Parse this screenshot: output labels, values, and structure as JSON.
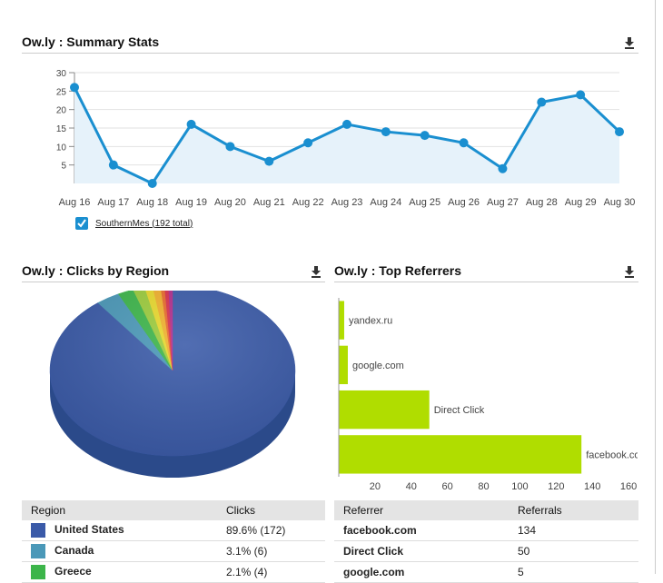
{
  "summary": {
    "title": "Ow.ly : Summary Stats",
    "legend_label": "SouthernMes (192 total)",
    "series_color": "#1a8fd0",
    "download_icon": "download-icon"
  },
  "region": {
    "title": "Ow.ly : Clicks by Region",
    "col_region": "Region",
    "col_clicks": "Clicks",
    "rows": [
      {
        "name": "United States",
        "clicks": "89.6% (172)",
        "color": "#3a5aa8"
      },
      {
        "name": "Canada",
        "clicks": "3.1% (6)",
        "color": "#4a98b8"
      },
      {
        "name": "Greece",
        "clicks": "2.1% (4)",
        "color": "#3cb54a"
      }
    ]
  },
  "referrers": {
    "title": "Ow.ly : Top Referrers",
    "col_referrer": "Referrer",
    "col_referrals": "Referrals",
    "rows": [
      {
        "name": "facebook.com",
        "referrals": "134"
      },
      {
        "name": "Direct Click",
        "referrals": "50"
      },
      {
        "name": "google.com",
        "referrals": "5"
      }
    ],
    "bar_color": "#b0dd00"
  },
  "chart_data": [
    {
      "type": "area",
      "title": "Ow.ly : Summary Stats",
      "categories": [
        "Aug 16",
        "Aug 17",
        "Aug 18",
        "Aug 19",
        "Aug 20",
        "Aug 21",
        "Aug 22",
        "Aug 23",
        "Aug 24",
        "Aug 25",
        "Aug 26",
        "Aug 27",
        "Aug 28",
        "Aug 29",
        "Aug 30"
      ],
      "series": [
        {
          "name": "SouthernMes (192 total)",
          "values": [
            26,
            5,
            0,
            16,
            10,
            6,
            11,
            16,
            14,
            13,
            11,
            4,
            22,
            24,
            14
          ]
        }
      ],
      "yticks": [
        5,
        10,
        15,
        20,
        25,
        30
      ],
      "ylim": [
        0,
        30
      ],
      "grid": true
    },
    {
      "type": "pie",
      "title": "Ow.ly : Clicks by Region",
      "slices": [
        {
          "label": "United States",
          "value": 172,
          "color": "#3a5aa8"
        },
        {
          "label": "Canada",
          "value": 6,
          "color": "#4a98b8"
        },
        {
          "label": "Greece",
          "value": 4,
          "color": "#3cb54a"
        },
        {
          "value": 3,
          "color": "#9ccc3c"
        },
        {
          "value": 2,
          "color": "#e8d82c"
        },
        {
          "value": 2,
          "color": "#f0b02c"
        },
        {
          "value": 1,
          "color": "#e86a2c"
        },
        {
          "value": 1,
          "color": "#d8304a"
        },
        {
          "value": 1,
          "color": "#b02c8c"
        }
      ]
    },
    {
      "type": "bar",
      "orientation": "horizontal",
      "title": "Ow.ly : Top Referrers",
      "categories": [
        "yandex.ru",
        "google.com",
        "Direct Click",
        "facebook.com"
      ],
      "values": [
        3,
        5,
        50,
        134
      ],
      "xticks": [
        20,
        40,
        60,
        80,
        100,
        120,
        140,
        160
      ],
      "xlim": [
        0,
        165
      ]
    }
  ]
}
